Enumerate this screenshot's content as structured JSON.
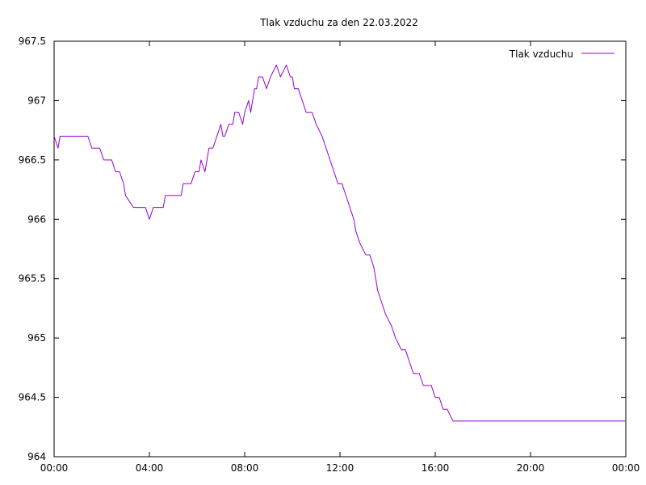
{
  "chart_data": {
    "type": "line",
    "title": "Tlak vzduchu za den 22.03.2022",
    "xlabel": "",
    "ylabel": "",
    "xlim": [
      "00:00",
      "24:00"
    ],
    "ylim": [
      964,
      967.5
    ],
    "grid": false,
    "legend_position": "top-right",
    "x_ticks": [
      "00:00",
      "04:00",
      "08:00",
      "12:00",
      "16:00",
      "20:00",
      "00:00"
    ],
    "y_ticks": [
      "964",
      "964.5",
      "965",
      "965.5",
      "966",
      "966.5",
      "967",
      "967.5"
    ],
    "series": [
      {
        "name": "Tlak vzduchu",
        "color": "#9400d3",
        "x": [
          "00:00",
          "00:10",
          "00:15",
          "00:20",
          "01:25",
          "01:35",
          "01:55",
          "02:05",
          "02:25",
          "02:35",
          "02:45",
          "02:55",
          "03:00",
          "03:10",
          "03:20",
          "03:50",
          "04:00",
          "04:10",
          "04:35",
          "04:40",
          "05:20",
          "05:25",
          "05:45",
          "05:55",
          "06:05",
          "06:10",
          "06:20",
          "06:30",
          "06:40",
          "06:50",
          "07:00",
          "07:05",
          "07:10",
          "07:20",
          "07:30",
          "07:35",
          "07:45",
          "07:55",
          "08:00",
          "08:10",
          "08:15",
          "08:25",
          "08:30",
          "08:35",
          "08:45",
          "08:55",
          "09:05",
          "09:20",
          "09:30",
          "09:45",
          "09:55",
          "10:00",
          "10:05",
          "10:15",
          "10:25",
          "10:35",
          "10:50",
          "11:00",
          "11:15",
          "11:25",
          "11:35",
          "11:45",
          "11:55",
          "12:05",
          "12:15",
          "12:25",
          "12:35",
          "12:40",
          "12:50",
          "13:05",
          "13:15",
          "13:25",
          "13:30",
          "13:35",
          "13:45",
          "13:55",
          "14:10",
          "14:20",
          "14:35",
          "14:45",
          "14:55",
          "15:05",
          "15:20",
          "15:30",
          "15:50",
          "16:00",
          "16:10",
          "16:20",
          "16:30",
          "16:45",
          "17:00",
          "17:10",
          "17:30",
          "17:40",
          "17:45",
          "24:00"
        ],
        "values": [
          966.7,
          966.6,
          966.7,
          966.7,
          966.7,
          966.6,
          966.6,
          966.5,
          966.5,
          966.4,
          966.4,
          966.3,
          966.2,
          966.15,
          966.1,
          966.1,
          966.0,
          966.1,
          966.1,
          966.2,
          966.2,
          966.3,
          966.3,
          966.4,
          966.4,
          966.5,
          966.4,
          966.6,
          966.6,
          966.7,
          966.8,
          966.7,
          966.7,
          966.8,
          966.8,
          966.9,
          966.9,
          966.8,
          966.9,
          967.0,
          966.9,
          967.1,
          967.1,
          967.2,
          967.2,
          967.1,
          967.2,
          967.3,
          967.2,
          967.3,
          967.2,
          967.2,
          967.1,
          967.1,
          967.0,
          966.9,
          966.9,
          966.8,
          966.7,
          966.6,
          966.5,
          966.4,
          966.3,
          966.3,
          966.2,
          966.1,
          966.0,
          965.9,
          965.8,
          965.7,
          965.7,
          965.6,
          965.5,
          965.4,
          965.3,
          965.2,
          965.1,
          965.0,
          964.9,
          964.9,
          964.8,
          964.7,
          964.7,
          964.6,
          964.6,
          964.5,
          964.5,
          964.4,
          964.4,
          964.3,
          964.3,
          964.3,
          964.3,
          964.3,
          964.3,
          964.3
        ]
      }
    ]
  }
}
